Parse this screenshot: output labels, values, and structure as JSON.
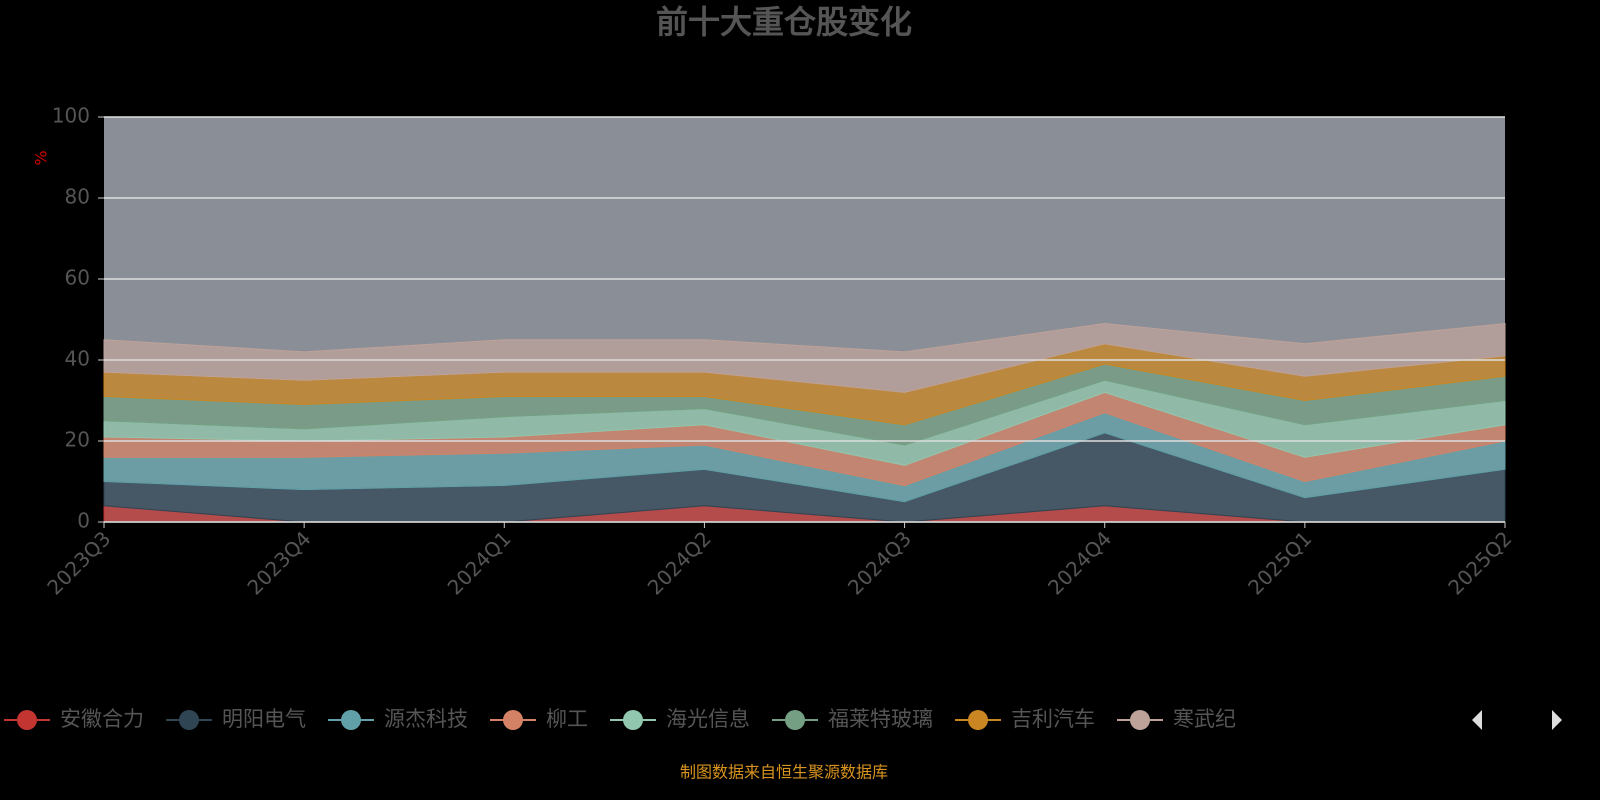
{
  "chart_data": {
    "type": "stacked-area",
    "title": "前十大重仓股变化",
    "y_label": "%",
    "footer": "制图数据来自恒生聚源数据库",
    "categories": [
      "2023Q3",
      "2023Q4",
      "2024Q1",
      "2024Q2",
      "2024Q3",
      "2024Q4",
      "2025Q1",
      "2025Q2"
    ],
    "series": [
      {
        "name": "安徽合力",
        "color": "#c23531",
        "values": [
          4,
          0,
          0,
          4,
          0,
          4,
          0,
          0
        ]
      },
      {
        "name": "明阳电气",
        "color": "#2f4554",
        "values": [
          6,
          8,
          9,
          9,
          5,
          18,
          6,
          13
        ]
      },
      {
        "name": "源杰科技",
        "color": "#61a0a8",
        "values": [
          6,
          8,
          8,
          6,
          4,
          5,
          4,
          7
        ]
      },
      {
        "name": "柳工",
        "color": "#d48265",
        "values": [
          5,
          4,
          4,
          5,
          5,
          5,
          6,
          4
        ]
      },
      {
        "name": "海光信息",
        "color": "#91c7ae",
        "values": [
          4,
          3,
          5,
          4,
          5,
          3,
          8,
          6
        ]
      },
      {
        "name": "福莱特玻璃",
        "color": "#749f83",
        "values": [
          6,
          6,
          5,
          3,
          5,
          4,
          6,
          6
        ]
      },
      {
        "name": "吉利汽车",
        "color": "#ca8622",
        "values": [
          6,
          6,
          6,
          6,
          8,
          5,
          6,
          5
        ]
      },
      {
        "name": "寒武纪",
        "color": "#bda29a",
        "values": [
          8,
          7,
          8,
          8,
          10,
          5,
          8,
          8
        ]
      }
    ],
    "ylim": [
      0,
      100
    ],
    "yticks": [
      0,
      20,
      40,
      60,
      80,
      100
    ],
    "grid": true
  }
}
